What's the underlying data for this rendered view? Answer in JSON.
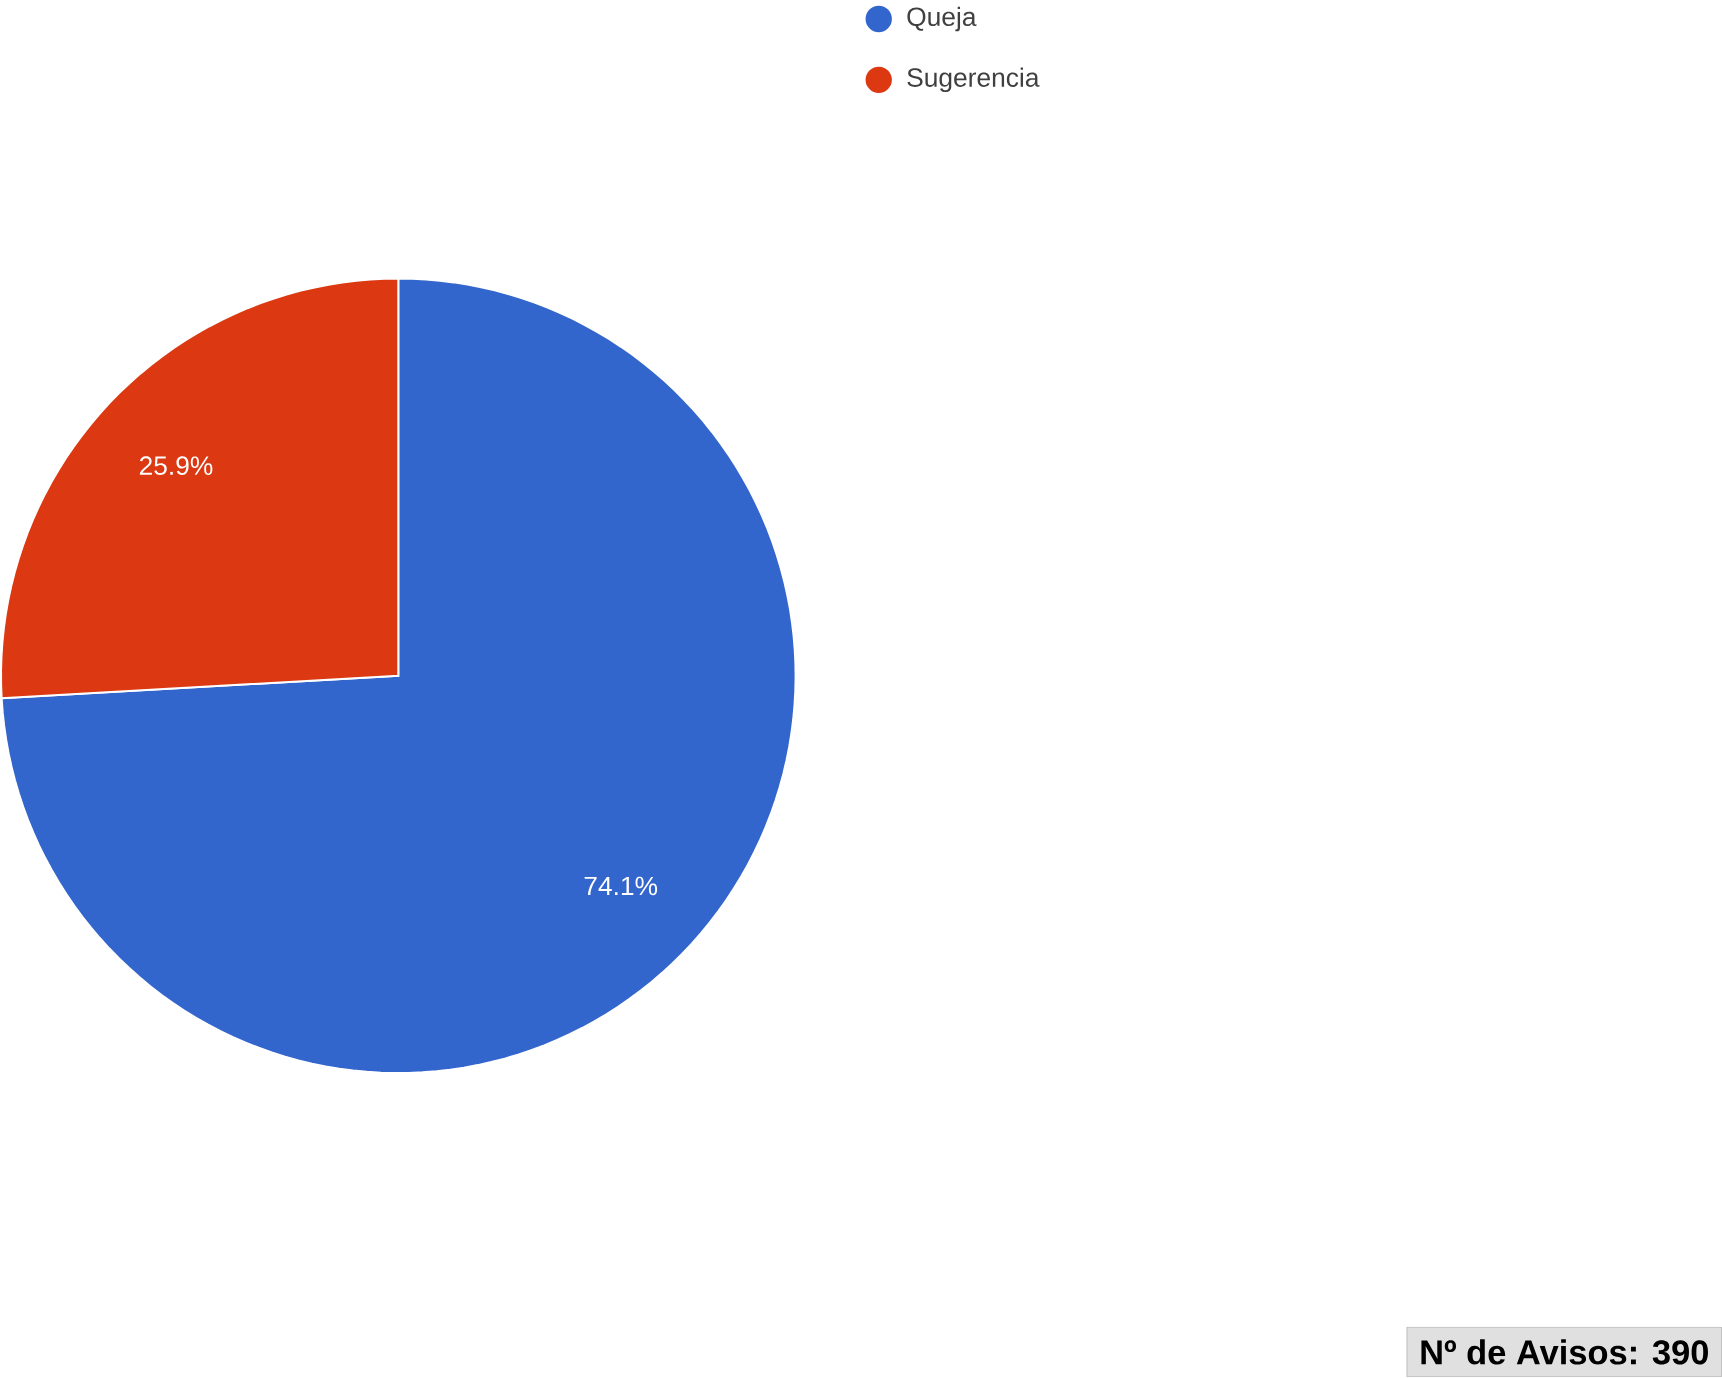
{
  "chart_data": {
    "type": "pie",
    "categories": [
      "Queja",
      "Sugerencia"
    ],
    "values": [
      74.1,
      25.9
    ],
    "colors": [
      "#3366cc",
      "#dc3912"
    ],
    "value_labels": [
      "74.1%",
      "25.9%"
    ],
    "legend": "top",
    "annotations": [
      "Nº de Avisos: 390"
    ]
  }
}
